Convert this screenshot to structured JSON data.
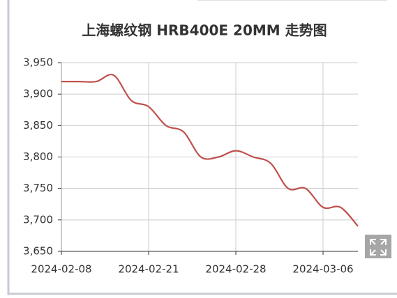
{
  "chart_data": {
    "type": "line",
    "title": "上海螺纹钢 HRB400E 20MM 走势图",
    "categories": [
      "2024-02-08",
      null,
      null,
      null,
      null,
      "2024-02-21",
      null,
      null,
      null,
      null,
      "2024-02-28",
      null,
      null,
      null,
      null,
      "2024-03-06",
      null,
      null
    ],
    "series": [
      {
        "color": "#c0504d",
        "values": [
          3920,
          3920,
          3920,
          3930,
          3890,
          3880,
          3850,
          3840,
          3800,
          3800,
          3810,
          3800,
          3790,
          3750,
          3750,
          3720,
          3720,
          3690
        ]
      }
    ],
    "ylim": [
      3650,
      3950
    ],
    "yticks": [
      {
        "value": 3650,
        "label": "3,650"
      },
      {
        "value": 3700,
        "label": "3,700"
      },
      {
        "value": 3750,
        "label": "3,750"
      },
      {
        "value": 3800,
        "label": "3,800"
      },
      {
        "value": 3850,
        "label": "3,850"
      },
      {
        "value": 3900,
        "label": "3,900"
      },
      {
        "value": 3950,
        "label": "3,950"
      }
    ],
    "grid": true,
    "smooth": true
  }
}
